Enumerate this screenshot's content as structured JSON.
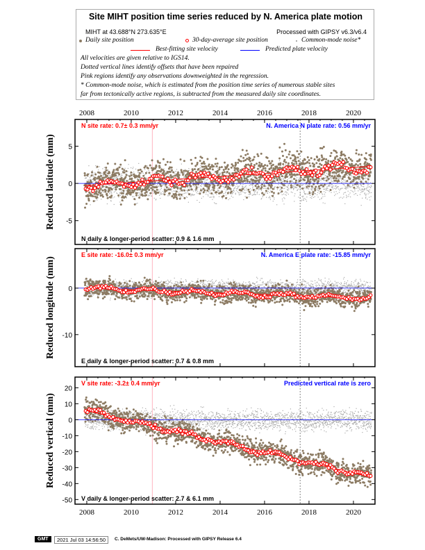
{
  "header": {
    "title": "Site MIHT position time series reduced by N. America plate motion",
    "site_location": "MIHT at 43.688°N 273.635°E",
    "processing": "Processed with GIPSY v6.3/v6.4"
  },
  "legend": {
    "daily": "Daily site position",
    "avg": "30-day-average site position",
    "cmn": "Common-mode noise*",
    "best": "Best-fitting site velocity",
    "pred": "Predicted plate velocity",
    "notes": [
      "All velocities are given relative to IGS14.",
      "Dotted vertical lines identify offsets that have been repaired",
      "Pink regions identify any observations downweighted in the regression.",
      "* Common-mode noise, which is estimated from the position time series of numerous stable sites",
      "far from tectonically active regions, is subtracted from the measured daily site coordinates."
    ]
  },
  "colors": {
    "daily": "#8c7b63",
    "avg": "#ff0000",
    "cmn": "#aaaaaa",
    "best": "#ff0000",
    "pred": "#0000ff",
    "pink": "#ffb6c1"
  },
  "footer": {
    "logo": "GMT",
    "timestamp": "2021 Jul 03 14:56:50",
    "credit": "C. DeMets/UW-Madison: Processed with GIPSY Release 6.4"
  },
  "chart_data": [
    {
      "type": "scatter",
      "ylabel": "Reduced latitude (mm)",
      "xlim": [
        2007.47,
        2020.97
      ],
      "ylim": [
        -8.2,
        8.6
      ],
      "yticks": [
        5,
        0,
        -5
      ],
      "xticks": [
        2008,
        2010,
        2012,
        2014,
        2016,
        2018,
        2020
      ],
      "site_rate": "N site rate:  0.7± 0.3 mm/yr",
      "plate_rate": "N. America N plate rate: 0.56 mm/yr",
      "scatter": "N daily & longer-period scatter:   0.9 &   1.6 mm",
      "trend": {
        "start": [
          2007.9,
          -0.3
        ],
        "end": [
          2020.8,
          2.3
        ]
      },
      "plate_line": 0,
      "offsets": [
        2017.6
      ],
      "pink": [
        2010.95
      ],
      "noise_sd": 1.2,
      "jump": {
        "at": 2017.6,
        "size": 0.8
      }
    },
    {
      "type": "scatter",
      "ylabel": "Reduced longitude (mm)",
      "xlim": [
        2007.47,
        2020.97
      ],
      "ylim": [
        -16.9,
        8.5
      ],
      "yticks": [
        0,
        -10
      ],
      "xticks": [
        2008,
        2010,
        2012,
        2014,
        2016,
        2018,
        2020
      ],
      "site_rate": "E site rate: -16.0± 0.3 mm/yr",
      "plate_rate": "N. America E plate rate: -15.85 mm/yr",
      "scatter": "E daily & longer-period scatter:   0.7 &   0.8 mm",
      "trend": {
        "start": [
          2007.9,
          0
        ],
        "end": [
          2020.8,
          -2.2
        ]
      },
      "plate_line": 0,
      "offsets": [
        2017.6
      ],
      "pink": [
        2010.95
      ],
      "noise_sd": 1.0,
      "jump": {
        "at": 2017.6,
        "size": 0
      }
    },
    {
      "type": "scatter",
      "ylabel": "Reduced vertical (mm)",
      "xlim": [
        2007.47,
        2020.97
      ],
      "ylim": [
        -52.9,
        26.7
      ],
      "yticks": [
        20,
        10,
        0,
        -10,
        -20,
        -30,
        -40,
        -50
      ],
      "xticks": [
        2008,
        2010,
        2012,
        2014,
        2016,
        2018,
        2020
      ],
      "site_rate": "V site rate: -3.2± 0.4 mm/yr",
      "plate_rate": "Predicted vertical rate is zero",
      "scatter": "V daily & longer-period scatter:   2.7 &   6.1 mm",
      "trend": {
        "start": [
          2007.9,
          6
        ],
        "end": [
          2020.8,
          -36
        ]
      },
      "plate_line": 0,
      "offsets": [
        2017.6
      ],
      "pink": [
        2010.95
      ],
      "noise_sd": 3.5,
      "jump": {
        "at": 2017.6,
        "size": 0
      }
    }
  ]
}
